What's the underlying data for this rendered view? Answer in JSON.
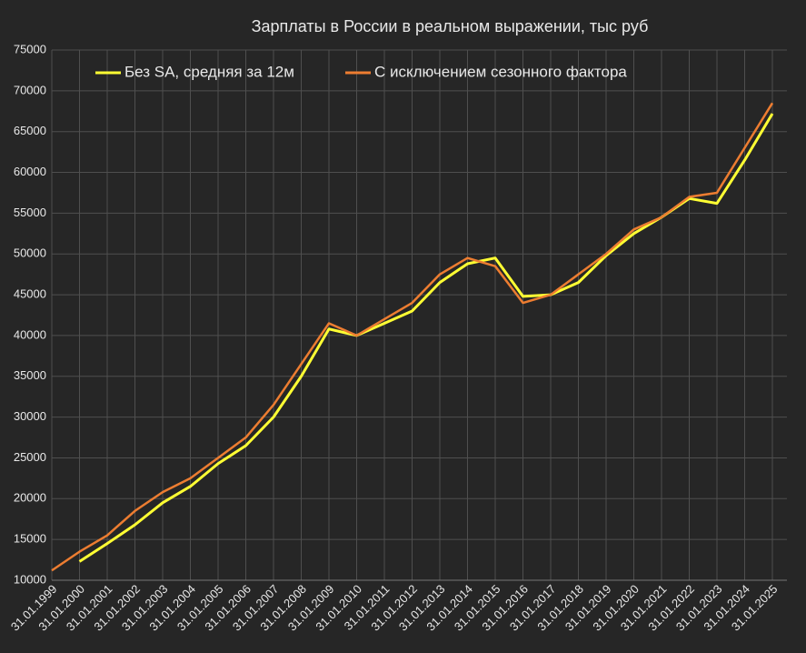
{
  "chart_data": {
    "type": "line",
    "title": "Зарплаты в России в реальном выражении, тыс руб",
    "categories": [
      "31.01.1999",
      "31.01.2000",
      "31.01.2001",
      "31.01.2002",
      "31.01.2003",
      "31.01.2004",
      "31.01.2005",
      "31.01.2006",
      "31.01.2007",
      "31.01.2008",
      "31.01.2009",
      "31.01.2010",
      "31.01.2011",
      "31.01.2012",
      "31.01.2013",
      "31.01.2014",
      "31.01.2015",
      "31.01.2016",
      "31.01.2017",
      "31.01.2018",
      "31.01.2019",
      "31.01.2020",
      "31.01.2021",
      "31.01.2022",
      "31.01.2023",
      "31.01.2024",
      "31.01.2025"
    ],
    "series": [
      {
        "name": "Без SA, средняя за 12м",
        "color": "#ffff33",
        "values": [
          null,
          12300,
          14500,
          16800,
          19500,
          21500,
          24300,
          26500,
          30000,
          35000,
          40800,
          40000,
          41500,
          43000,
          46500,
          48800,
          49500,
          44800,
          45000,
          46500,
          49800,
          52500,
          54500,
          56800,
          56200,
          61500,
          67200
        ]
      },
      {
        "name": "С исключением сезонного фактора",
        "color": "#ed7d31",
        "values": [
          11200,
          13500,
          15500,
          18500,
          20800,
          22500,
          25000,
          27500,
          31500,
          36500,
          41500,
          40000,
          42000,
          44000,
          47500,
          49500,
          48500,
          44000,
          45000,
          47500,
          50000,
          53000,
          54500,
          57000,
          57500,
          63000,
          68500
        ]
      }
    ],
    "ylim": [
      10000,
      75000
    ],
    "yticks": [
      10000,
      15000,
      20000,
      25000,
      30000,
      35000,
      40000,
      45000,
      50000,
      55000,
      60000,
      65000,
      70000,
      75000
    ],
    "grid": true
  }
}
